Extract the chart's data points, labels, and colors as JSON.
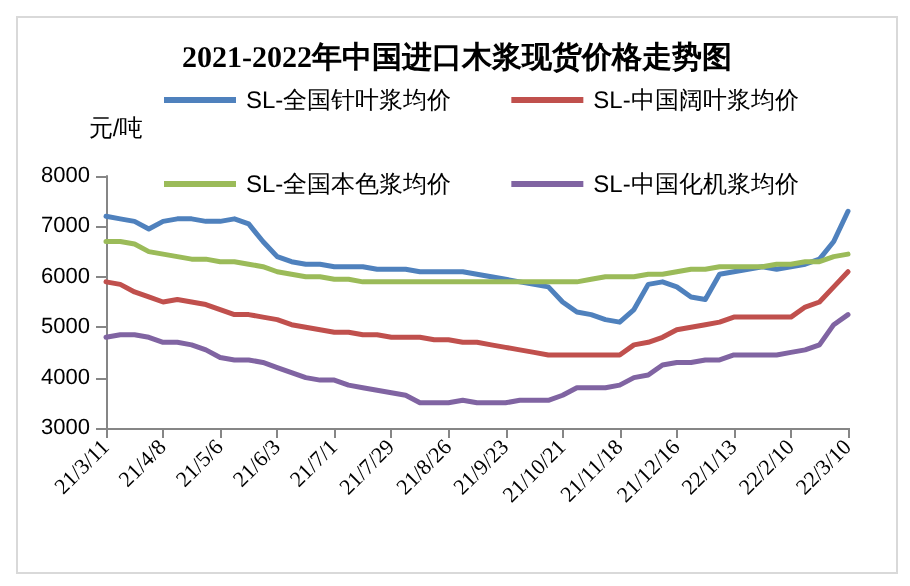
{
  "chart_data": {
    "type": "line",
    "title": "2021-2022年中国进口木浆现货价格走势图",
    "ylabel": "元/吨",
    "categories": [
      "21/3/11",
      null,
      null,
      null,
      "21/4/8",
      null,
      null,
      null,
      "21/5/6",
      null,
      null,
      null,
      "21/6/3",
      null,
      null,
      null,
      "21/7/1",
      null,
      null,
      null,
      "21/7/29",
      null,
      null,
      null,
      "21/8/26",
      null,
      null,
      null,
      "21/9/23",
      null,
      null,
      null,
      "21/10/21",
      null,
      null,
      null,
      "21/11/18",
      null,
      null,
      null,
      "21/12/16",
      null,
      null,
      null,
      "22/1/13",
      null,
      null,
      null,
      "22/2/10",
      null,
      null,
      null,
      "22/3/10"
    ],
    "series": [
      {
        "name": "SL-全国针叶浆均价",
        "color": "#4f81bd",
        "values": [
          7200,
          7150,
          7100,
          6950,
          7100,
          7150,
          7150,
          7100,
          7100,
          7150,
          7050,
          6700,
          6400,
          6300,
          6250,
          6250,
          6200,
          6200,
          6200,
          6150,
          6150,
          6150,
          6100,
          6100,
          6100,
          6100,
          6050,
          6000,
          5950,
          5900,
          5850,
          5800,
          5500,
          5300,
          5250,
          5150,
          5100,
          5350,
          5850,
          5900,
          5800,
          5600,
          5550,
          6050,
          6100,
          6150,
          6200,
          6150,
          6200,
          6250,
          6350,
          6700,
          7300
        ]
      },
      {
        "name": "SL-中国阔叶浆均价",
        "color": "#c0504d",
        "values": [
          5900,
          5850,
          5700,
          5600,
          5500,
          5550,
          5500,
          5450,
          5350,
          5250,
          5250,
          5200,
          5150,
          5050,
          5000,
          4950,
          4900,
          4900,
          4850,
          4850,
          4800,
          4800,
          4800,
          4750,
          4750,
          4700,
          4700,
          4650,
          4600,
          4550,
          4500,
          4450,
          4450,
          4450,
          4450,
          4450,
          4450,
          4650,
          4700,
          4800,
          4950,
          5000,
          5050,
          5100,
          5200,
          5200,
          5200,
          5200,
          5200,
          5400,
          5500,
          5800,
          6100
        ]
      },
      {
        "name": "SL-全国本色浆均价",
        "color": "#9bbb59",
        "values": [
          6700,
          6700,
          6650,
          6500,
          6450,
          6400,
          6350,
          6350,
          6300,
          6300,
          6250,
          6200,
          6100,
          6050,
          6000,
          6000,
          5950,
          5950,
          5900,
          5900,
          5900,
          5900,
          5900,
          5900,
          5900,
          5900,
          5900,
          5900,
          5900,
          5900,
          5900,
          5900,
          5900,
          5900,
          5950,
          6000,
          6000,
          6000,
          6050,
          6050,
          6100,
          6150,
          6150,
          6200,
          6200,
          6200,
          6200,
          6250,
          6250,
          6300,
          6300,
          6400,
          6450
        ]
      },
      {
        "name": "SL-中国化机浆均价",
        "color": "#8064a2",
        "values": [
          4800,
          4850,
          4850,
          4800,
          4700,
          4700,
          4650,
          4550,
          4400,
          4350,
          4350,
          4300,
          4200,
          4100,
          4000,
          3950,
          3950,
          3850,
          3800,
          3750,
          3700,
          3650,
          3500,
          3500,
          3500,
          3550,
          3500,
          3500,
          3500,
          3550,
          3550,
          3550,
          3650,
          3800,
          3800,
          3800,
          3850,
          4000,
          4050,
          4250,
          4300,
          4300,
          4350,
          4350,
          4450,
          4450,
          4450,
          4450,
          4500,
          4550,
          4650,
          5050,
          5250
        ]
      }
    ],
    "ylim": [
      3000,
      8000
    ],
    "yticks": [
      3000,
      4000,
      5000,
      6000,
      7000,
      8000
    ],
    "grid": false,
    "legend": "top",
    "marker": "none",
    "line_style": "solid"
  }
}
